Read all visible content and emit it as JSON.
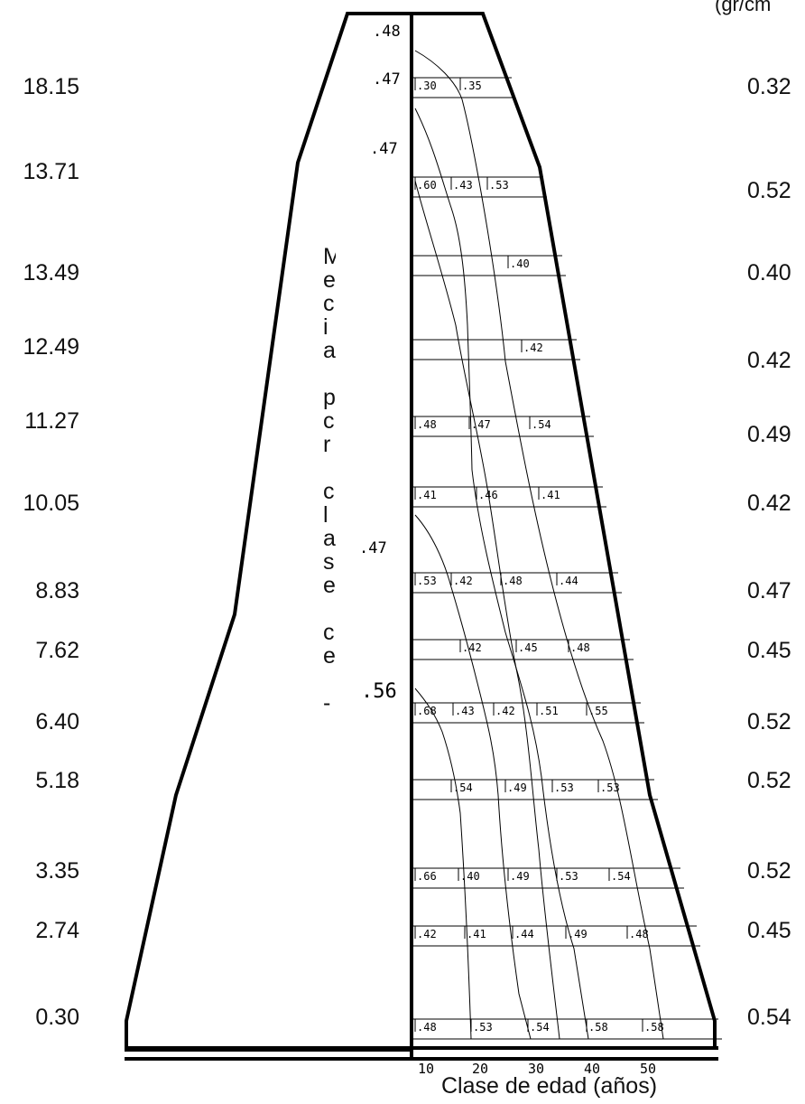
{
  "unit_label": "(gr/cm",
  "x_axis_title": "Clase de edad (años)",
  "x_ticks": [
    "10",
    "20",
    "30",
    "40",
    "50"
  ],
  "left_heights": [
    "18.15",
    "13.71",
    "13.49",
    "12.49",
    "11.27",
    "10.05",
    "8.83",
    "7.62",
    "6.40",
    "5.18",
    "3.35",
    "2.74",
    "0.30"
  ],
  "right_densities": [
    "0.32",
    "0.52",
    "0.40",
    "0.42",
    "0.49",
    "0.42",
    "0.47",
    "0.45",
    "0.52",
    "0.52",
    "0.52",
    "0.45",
    "0.54"
  ],
  "pith_values": [
    ".48",
    ".47",
    ".47",
    ".47",
    ".56"
  ],
  "caption_fragments": [
    "M",
    "e",
    "c",
    "i",
    "a",
    "",
    "p",
    "c",
    "r",
    "",
    "c",
    "l",
    "a",
    "s",
    "e",
    "",
    "c",
    "e",
    "",
    "-"
  ],
  "section_rows": [
    {
      "cells": [
        ".30",
        ".35"
      ]
    },
    {
      "cells": [
        ".60",
        ".43",
        ".53"
      ]
    },
    {
      "cells": [
        ".40"
      ]
    },
    {
      "cells": [
        ".42"
      ]
    },
    {
      "cells": [
        ".48",
        ".47",
        ".54"
      ]
    },
    {
      "cells": [
        ".41",
        ".46",
        ".41"
      ]
    },
    {
      "cells": [
        ".53",
        ".42",
        ".48",
        ".44"
      ]
    },
    {
      "cells": [
        ".42",
        ".45",
        ".48"
      ]
    },
    {
      "cells": [
        ".68",
        ".43",
        ".42",
        ".51",
        ".55"
      ]
    },
    {
      "cells": [
        ".54",
        ".49",
        ".53",
        ".53"
      ]
    },
    {
      "cells": [
        ".66",
        ".40",
        ".49",
        ".53",
        ".54"
      ]
    },
    {
      "cells": [
        ".42",
        ".41",
        ".44",
        ".49",
        ".48"
      ]
    },
    {
      "cells": [
        ".48",
        ".53",
        ".54",
        ".58",
        ".58"
      ]
    }
  ]
}
